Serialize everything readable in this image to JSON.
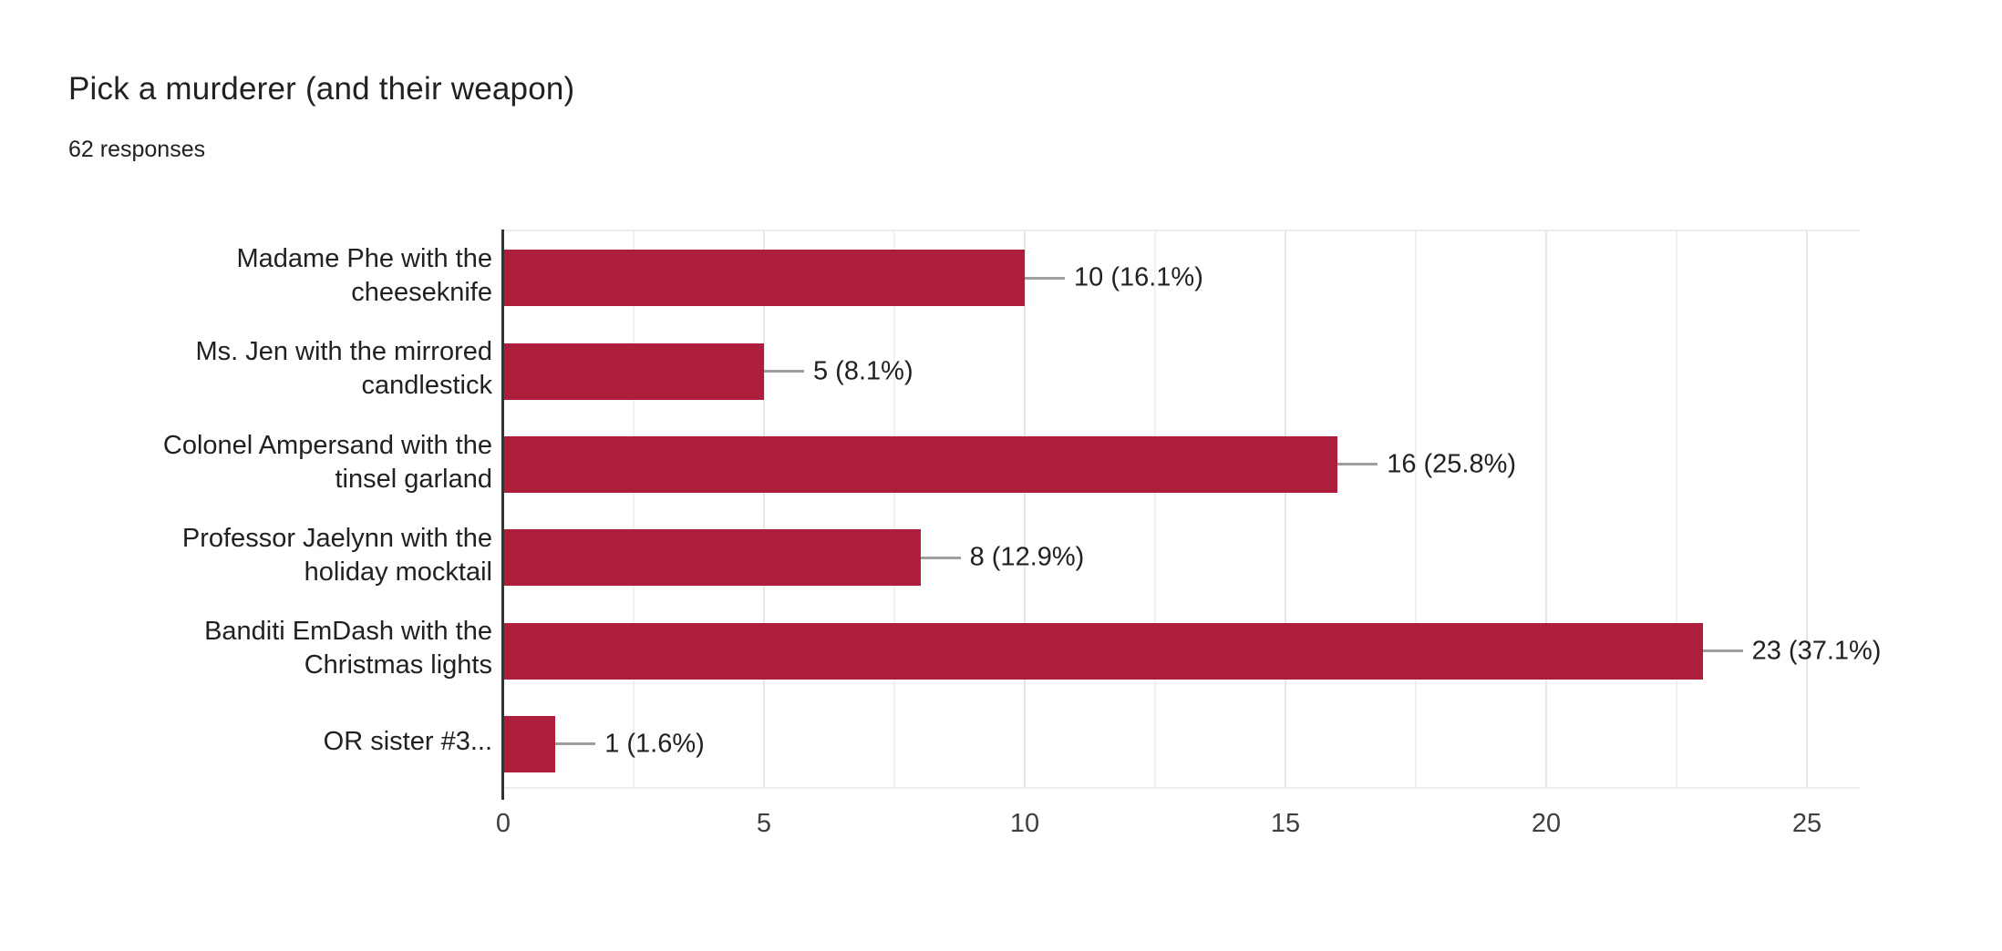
{
  "header": {
    "title": "Pick a murderer (and their weapon)",
    "subtitle": "62 responses"
  },
  "chart_data": {
    "type": "bar",
    "orientation": "horizontal",
    "title": "Pick a murderer (and their weapon)",
    "subtitle": "62 responses",
    "total_responses": 62,
    "categories": [
      "Madame Phe with the cheeseknife",
      "Ms. Jen with the mirrored candlestick",
      "Colonel Ampersand with the tinsel garland",
      "Professor Jaelynn with the holiday mocktail",
      "Banditi EmDash with the Christmas lights",
      "OR sister #3..."
    ],
    "category_display_lines": [
      [
        "Madame Phe with the",
        "cheeseknife"
      ],
      [
        "Ms. Jen with the mirrored",
        "candlestick"
      ],
      [
        "Colonel Ampersand with the",
        "tinsel garland"
      ],
      [
        "Professor Jaelynn with the",
        "holiday mocktail"
      ],
      [
        "Banditi EmDash with the",
        "Christmas lights"
      ],
      [
        "OR sister #3..."
      ]
    ],
    "values": [
      10,
      5,
      16,
      8,
      23,
      1
    ],
    "percentages": [
      16.1,
      8.1,
      25.8,
      12.9,
      37.1,
      1.6
    ],
    "value_labels": [
      "10 (16.1%)",
      "5 (8.1%)",
      "16 (25.8%)",
      "8 (12.9%)",
      "23 (37.1%)",
      "1 (1.6%)"
    ],
    "xlabel": "",
    "ylabel": "",
    "x_ticks": [
      0,
      5,
      10,
      15,
      20,
      25
    ],
    "x_tick_labels": [
      "0",
      "5",
      "10",
      "15",
      "20",
      "25"
    ],
    "x_minor_tick_interval": 2.5,
    "xlim": [
      0,
      26
    ],
    "grid": "vertical",
    "legend": "none",
    "colors": {
      "bar": "#AE1E3C",
      "axis_line": "#333333",
      "major_gridline": "#e6e6e6",
      "minor_gridline": "#f1f1f1",
      "connector": "#9e9e9e",
      "title_text": "#202124",
      "label_text": "#202124",
      "tick_text": "#3c4043"
    }
  }
}
